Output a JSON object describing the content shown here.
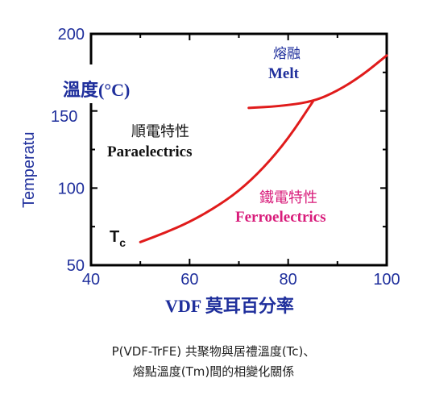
{
  "chart_data": {
    "type": "line",
    "xlim": [
      40,
      100
    ],
    "ylim": [
      50,
      200
    ],
    "x_ticks": [
      40,
      60,
      80,
      100
    ],
    "y_ticks": [
      50,
      100,
      200
    ],
    "y_ticks_partial": [
      "150"
    ],
    "xlabel": "VDF 莫耳百分率",
    "ylabel": "Temperatu",
    "ylabel_overlay": "溫度(°C)",
    "grid": false,
    "series": [
      {
        "name": "Tc",
        "color": "#e01b1b",
        "x": [
          50,
          55,
          60,
          65,
          70,
          75,
          80,
          85
        ],
        "y": [
          65,
          71,
          78,
          87,
          98,
          113,
          132,
          156
        ]
      },
      {
        "name": "Tm",
        "color": "#e01b1b",
        "x": [
          72,
          78,
          85,
          90,
          95,
          100
        ],
        "y": [
          152,
          153,
          156,
          163,
          173,
          186
        ]
      }
    ],
    "annotations": {
      "melt_zh": "熔融",
      "melt_en": "Melt",
      "para_zh": "順電特性",
      "para_en": "Paraelectrics",
      "ferro_zh": "鐵電特性",
      "ferro_en": "Ferroelectrics",
      "tc_main": "T",
      "tc_sub": "c"
    }
  },
  "caption": {
    "line1": "P(VDF-TrFE) 共聚物與居禮溫度(Tc)、",
    "line2": "熔點溫度(Tm)間的相變化關係"
  },
  "colors": {
    "axis_text": "#1f2f9c",
    "curve": "#e01b1b",
    "ferro": "#d81b7a",
    "para": "#111111"
  }
}
